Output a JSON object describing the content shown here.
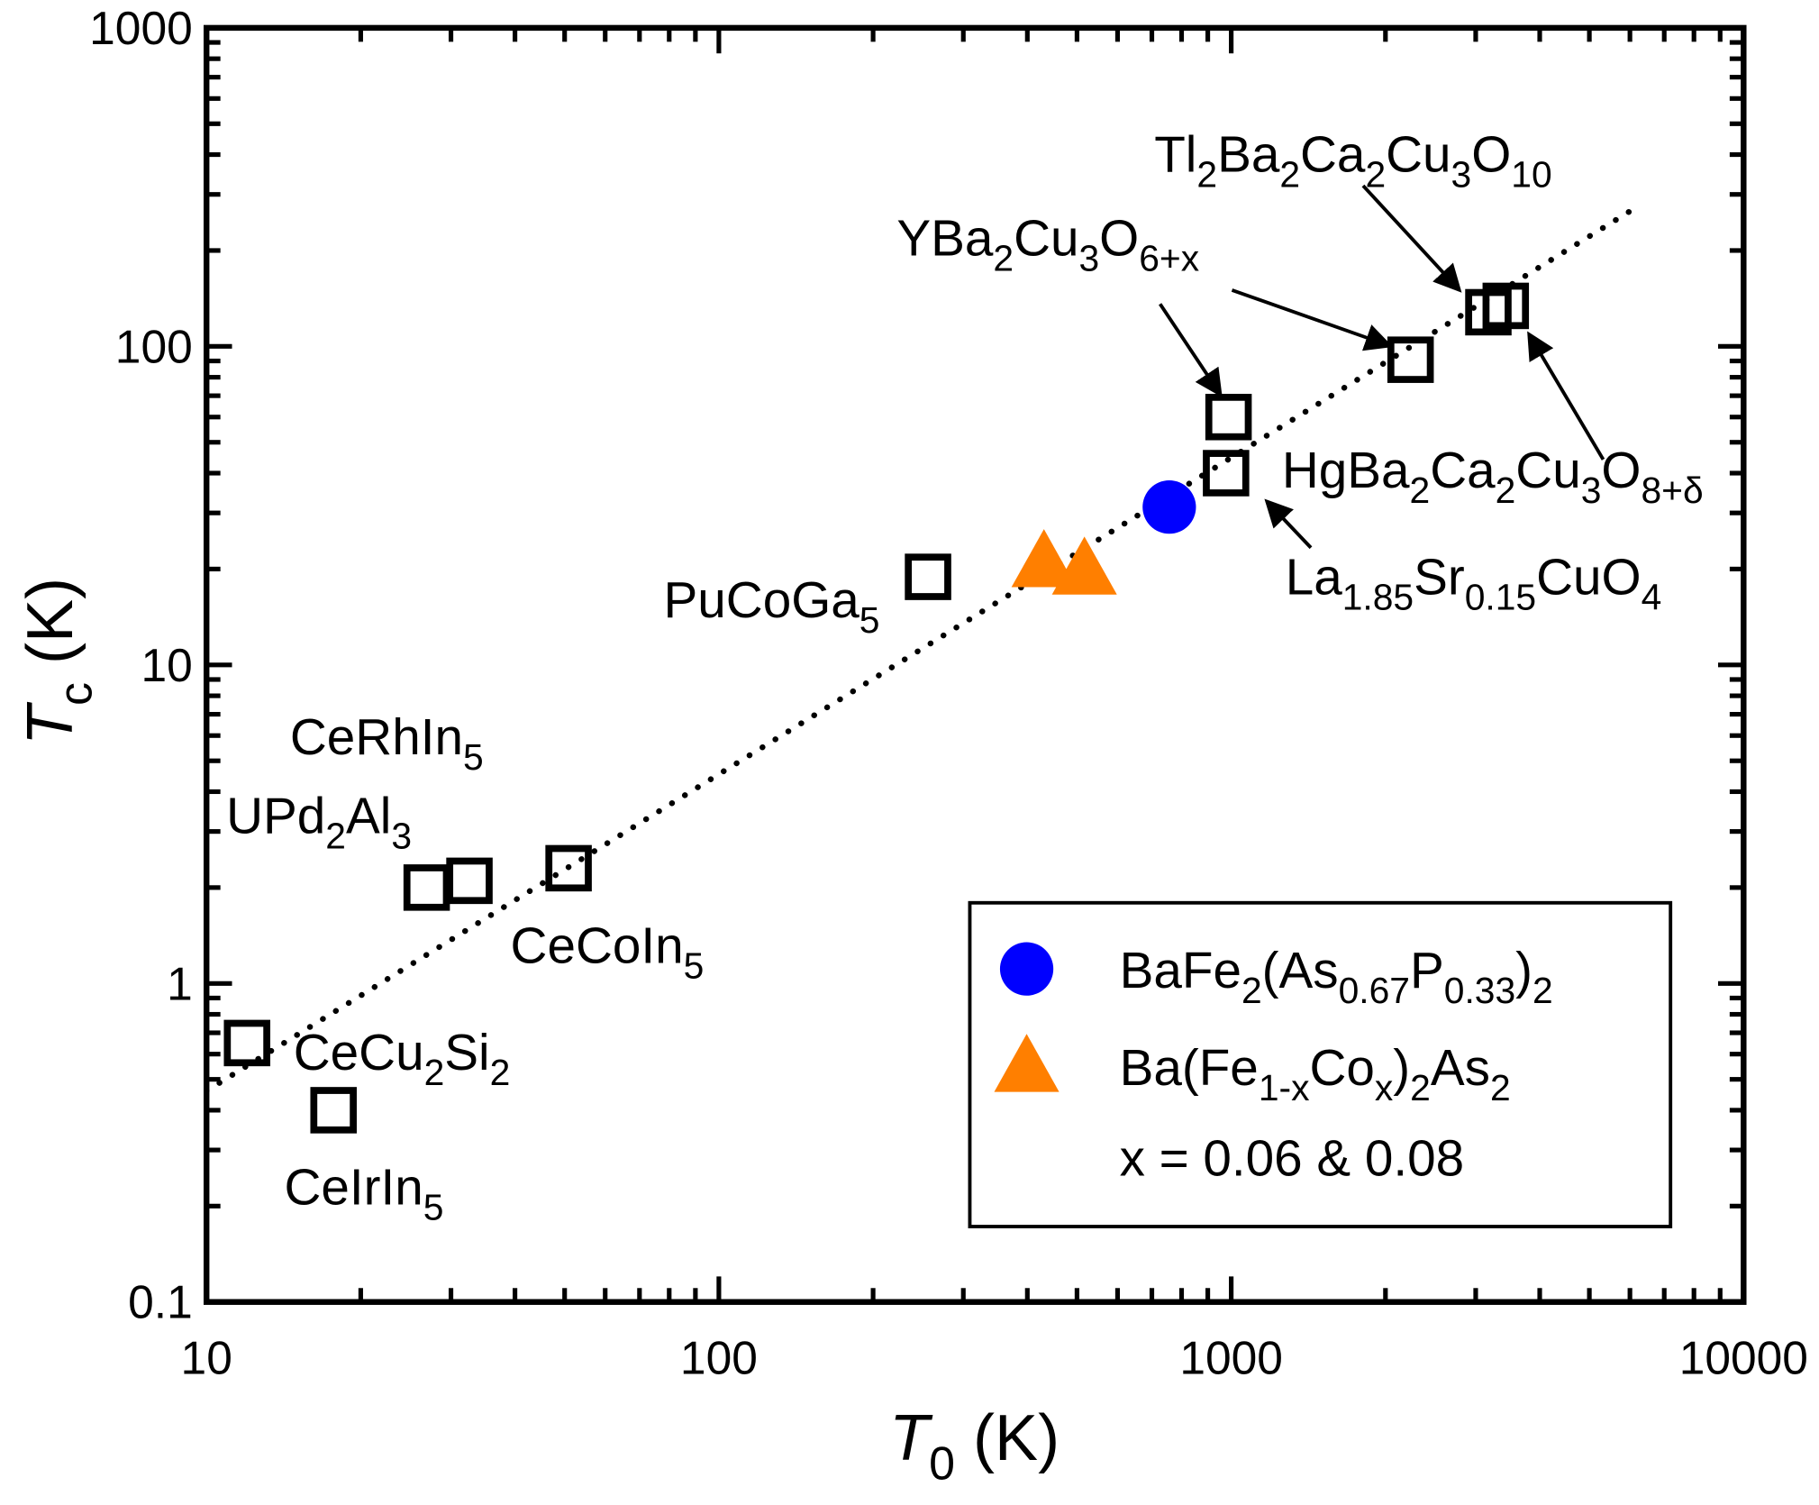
{
  "chart_data": {
    "type": "scatter",
    "x_label": [
      "T",
      "0",
      " (K)"
    ],
    "y_label": [
      "T",
      "c",
      " (K)"
    ],
    "log_x": true,
    "log_y": true,
    "xlim": [
      10,
      10000
    ],
    "ylim": [
      0.1,
      1000
    ],
    "xticks": [
      10,
      100,
      1000,
      10000
    ],
    "yticks": [
      0.1,
      1,
      10,
      100,
      1000
    ],
    "minor_ticks": true,
    "legend": "lower right",
    "legend_note": "x = 0.06 & 0.08",
    "fit_line": {
      "style": "dotted",
      "color": "#000000",
      "x": [
        10,
        6100
      ],
      "values": [
        0.46,
        270
      ]
    },
    "series": [
      {
        "marker": "square",
        "color": "#000000",
        "x": [
          12,
          17.7,
          26.9,
          32.6,
          50.9,
          256,
          977,
          988,
          2239,
          3176,
          3434
        ],
        "values": [
          0.65,
          0.4,
          2.0,
          2.1,
          2.3,
          18.9,
          40,
          60,
          90.8,
          128,
          134
        ],
        "labels": [
          [
            "CeCu",
            "2",
            "Si",
            "2"
          ],
          [
            "CeIrIn",
            "5"
          ],
          [
            "UPd",
            "2",
            "Al",
            "3"
          ],
          [
            "CeRhIn",
            "5"
          ],
          [
            "CeCoIn",
            "5"
          ],
          [
            "PuCoGa",
            "5"
          ],
          [
            "La",
            "1.85",
            "Sr",
            "0.15",
            "CuO",
            "4"
          ],
          [
            "YBa",
            "2",
            "Cu",
            "3",
            "O",
            "6+x"
          ],
          null,
          [
            "Tl",
            "2",
            "Ba",
            "2",
            "Ca",
            "2",
            "Cu",
            "3",
            "O",
            "10"
          ],
          [
            "HgBa",
            "2",
            "Ca",
            "2",
            "Cu",
            "3",
            "O",
            "8+δ"
          ]
        ]
      },
      {
        "name": [
          "BaFe",
          "2",
          "(As",
          "0.67",
          "P",
          "0.33",
          ")",
          "2"
        ],
        "marker": "circle",
        "color": "#0000ff",
        "x": [
          757
        ],
        "values": [
          31.3
        ]
      },
      {
        "name": [
          "Ba(Fe",
          "1-x",
          "Co",
          "x",
          ")",
          "2",
          "As",
          "2"
        ],
        "marker": "triangle",
        "color": "#ff7f00",
        "x": [
          431,
          517
        ],
        "values": [
          21.1,
          20
        ]
      }
    ]
  }
}
